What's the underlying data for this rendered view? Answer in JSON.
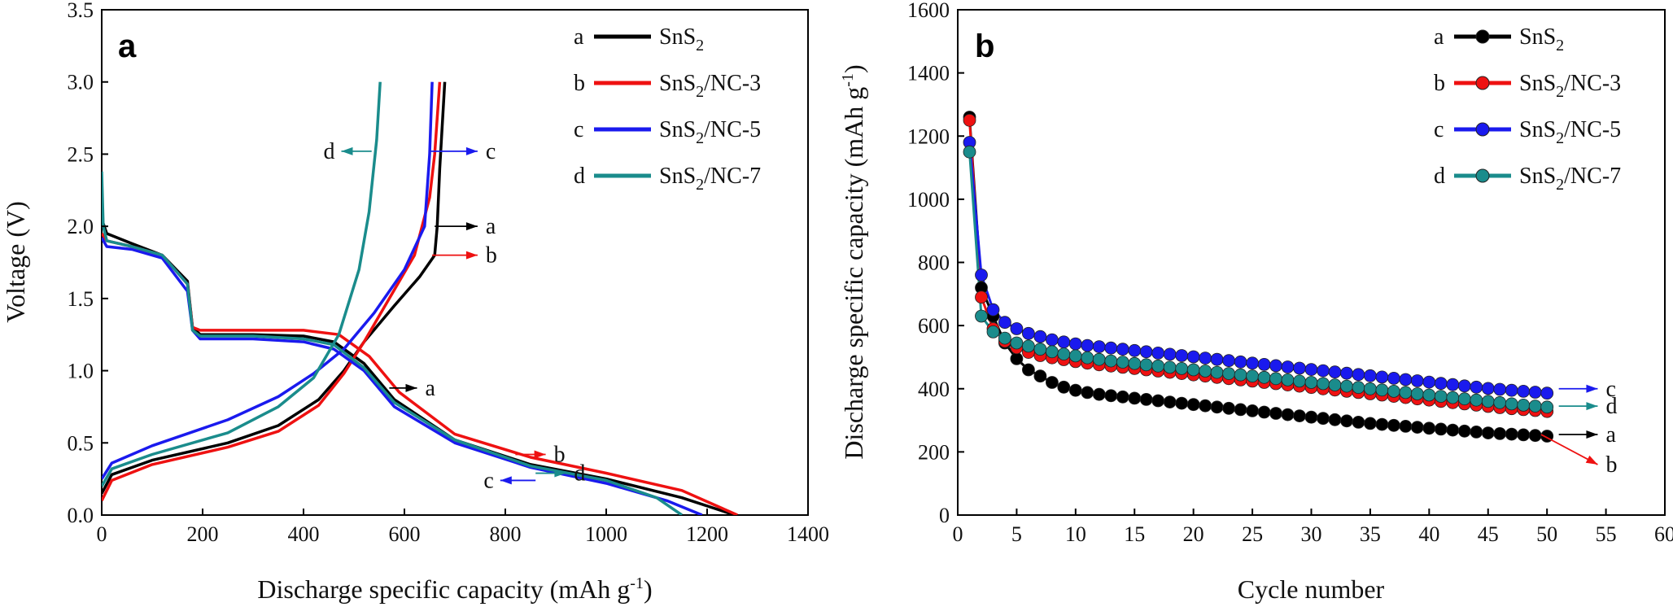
{
  "chart_data": [
    {
      "type": "line",
      "panel_label": "a",
      "xlabel": "Discharge specific capacity (mAh g",
      "xlabel_sup": "-1",
      "xlabel_end": ")",
      "ylabel": "Voltage (V)",
      "xlim": [
        0,
        1400
      ],
      "ylim": [
        0,
        3.5
      ],
      "xticks": [
        "0",
        "200",
        "400",
        "600",
        "800",
        "1000",
        "1200",
        "1400"
      ],
      "yticks": [
        "0.0",
        "0.5",
        "1.0",
        "1.5",
        "2.0",
        "2.5",
        "3.0",
        "3.5"
      ],
      "legend": [
        {
          "key": "a",
          "base": "SnS",
          "sub": "2",
          "rest": "",
          "color": "#000000"
        },
        {
          "key": "b",
          "base": "SnS",
          "sub": "2",
          "rest": "/NC-3",
          "color": "#ee1111"
        },
        {
          "key": "c",
          "base": "SnS",
          "sub": "2",
          "rest": "/NC-5",
          "color": "#1a1aee"
        },
        {
          "key": "d",
          "base": "SnS",
          "sub": "2",
          "rest": "/NC-7",
          "color": "#1a8c8c"
        }
      ],
      "series": [
        {
          "name": "SnS2",
          "color": "#000000",
          "discharge": [
            [
              0,
              2.05
            ],
            [
              10,
              1.95
            ],
            [
              60,
              1.88
            ],
            [
              120,
              1.8
            ],
            [
              170,
              1.62
            ],
            [
              180,
              1.3
            ],
            [
              195,
              1.25
            ],
            [
              300,
              1.25
            ],
            [
              400,
              1.24
            ],
            [
              460,
              1.2
            ],
            [
              520,
              1.05
            ],
            [
              580,
              0.8
            ],
            [
              700,
              0.52
            ],
            [
              850,
              0.35
            ],
            [
              1000,
              0.25
            ],
            [
              1150,
              0.12
            ],
            [
              1255,
              0.0
            ]
          ],
          "charge": [
            [
              0,
              0.15
            ],
            [
              20,
              0.28
            ],
            [
              100,
              0.38
            ],
            [
              250,
              0.5
            ],
            [
              350,
              0.62
            ],
            [
              430,
              0.8
            ],
            [
              480,
              1.0
            ],
            [
              520,
              1.2
            ],
            [
              580,
              1.45
            ],
            [
              630,
              1.65
            ],
            [
              660,
              1.8
            ],
            [
              665,
              2.0
            ],
            [
              670,
              2.4
            ],
            [
              680,
              3.0
            ]
          ]
        },
        {
          "name": "SnS2/NC-3",
          "color": "#ee1111",
          "discharge": [
            [
              0,
              1.95
            ],
            [
              10,
              1.9
            ],
            [
              60,
              1.86
            ],
            [
              120,
              1.8
            ],
            [
              170,
              1.6
            ],
            [
              180,
              1.3
            ],
            [
              195,
              1.28
            ],
            [
              300,
              1.28
            ],
            [
              400,
              1.28
            ],
            [
              470,
              1.25
            ],
            [
              530,
              1.1
            ],
            [
              590,
              0.85
            ],
            [
              700,
              0.56
            ],
            [
              850,
              0.4
            ],
            [
              1000,
              0.29
            ],
            [
              1150,
              0.17
            ],
            [
              1260,
              0.0
            ]
          ],
          "charge": [
            [
              0,
              0.1
            ],
            [
              20,
              0.24
            ],
            [
              100,
              0.35
            ],
            [
              250,
              0.47
            ],
            [
              350,
              0.58
            ],
            [
              430,
              0.76
            ],
            [
              480,
              0.98
            ],
            [
              520,
              1.2
            ],
            [
              570,
              1.5
            ],
            [
              620,
              1.8
            ],
            [
              650,
              2.2
            ],
            [
              660,
              2.5
            ],
            [
              670,
              3.0
            ]
          ]
        },
        {
          "name": "SnS2/NC-5",
          "color": "#1a1aee",
          "discharge": [
            [
              0,
              1.92
            ],
            [
              10,
              1.86
            ],
            [
              60,
              1.84
            ],
            [
              120,
              1.78
            ],
            [
              170,
              1.55
            ],
            [
              180,
              1.28
            ],
            [
              195,
              1.22
            ],
            [
              300,
              1.22
            ],
            [
              400,
              1.2
            ],
            [
              460,
              1.15
            ],
            [
              520,
              1.0
            ],
            [
              580,
              0.75
            ],
            [
              700,
              0.5
            ],
            [
              850,
              0.33
            ],
            [
              1000,
              0.22
            ],
            [
              1120,
              0.1
            ],
            [
              1190,
              0.0
            ]
          ],
          "charge": [
            [
              0,
              0.25
            ],
            [
              20,
              0.36
            ],
            [
              100,
              0.48
            ],
            [
              250,
              0.66
            ],
            [
              350,
              0.82
            ],
            [
              420,
              0.98
            ],
            [
              480,
              1.15
            ],
            [
              540,
              1.4
            ],
            [
              600,
              1.7
            ],
            [
              640,
              2.0
            ],
            [
              650,
              2.5
            ],
            [
              655,
              3.0
            ]
          ]
        },
        {
          "name": "SnS2/NC-7",
          "color": "#1a8c8c",
          "discharge": [
            [
              0,
              2.38
            ],
            [
              3,
              2.0
            ],
            [
              10,
              1.9
            ],
            [
              60,
              1.86
            ],
            [
              120,
              1.8
            ],
            [
              170,
              1.6
            ],
            [
              180,
              1.28
            ],
            [
              195,
              1.24
            ],
            [
              300,
              1.24
            ],
            [
              400,
              1.22
            ],
            [
              460,
              1.18
            ],
            [
              520,
              1.02
            ],
            [
              580,
              0.78
            ],
            [
              700,
              0.52
            ],
            [
              850,
              0.34
            ],
            [
              1000,
              0.24
            ],
            [
              1100,
              0.12
            ],
            [
              1150,
              0.0
            ]
          ],
          "charge": [
            [
              0,
              0.2
            ],
            [
              20,
              0.32
            ],
            [
              100,
              0.42
            ],
            [
              250,
              0.57
            ],
            [
              350,
              0.75
            ],
            [
              420,
              0.95
            ],
            [
              470,
              1.25
            ],
            [
              510,
              1.7
            ],
            [
              530,
              2.1
            ],
            [
              545,
              2.6
            ],
            [
              552,
              3.0
            ]
          ]
        }
      ],
      "annotations": [
        {
          "text": "a",
          "dir": "right",
          "color": "#000000",
          "tip": [
            625,
            0.88
          ],
          "tail": [
            570,
            0.88
          ]
        },
        {
          "text": "b",
          "dir": "right",
          "color": "#ee1111",
          "tip": [
            880,
            0.42
          ],
          "tail": [
            820,
            0.42
          ]
        },
        {
          "text": "c",
          "dir": "left",
          "color": "#1a1aee",
          "tip": [
            790,
            0.24
          ],
          "tail": [
            860,
            0.24
          ]
        },
        {
          "text": "d",
          "dir": "right",
          "color": "#1a8c8c",
          "tip": [
            920,
            0.29
          ],
          "tail": [
            860,
            0.29
          ]
        },
        {
          "text": "d",
          "dir": "left",
          "color": "#1a8c8c",
          "tip": [
            475,
            2.52
          ],
          "tail": [
            535,
            2.52
          ]
        },
        {
          "text": "c",
          "dir": "right",
          "color": "#1a1aee",
          "tip": [
            745,
            2.52
          ],
          "tail": [
            650,
            2.52
          ]
        },
        {
          "text": "a",
          "dir": "right",
          "color": "#000000",
          "tip": [
            745,
            2.0
          ],
          "tail": [
            660,
            2.0
          ]
        },
        {
          "text": "b",
          "dir": "right",
          "color": "#ee1111",
          "tip": [
            745,
            1.8
          ],
          "tail": [
            655,
            1.8
          ]
        }
      ]
    },
    {
      "type": "line",
      "panel_label": "b",
      "xlabel": "Cycle number",
      "ylabel": "Discharge specific capacity (mAh g",
      "ylabel_sup": "-1",
      "ylabel_end": ")",
      "xlim": [
        0,
        60
      ],
      "ylim": [
        0,
        1600
      ],
      "xticks": [
        "0",
        "5",
        "10",
        "15",
        "20",
        "25",
        "30",
        "35",
        "40",
        "45",
        "50",
        "55",
        "60"
      ],
      "yticks": [
        "0",
        "200",
        "400",
        "600",
        "800",
        "1000",
        "1200",
        "1400",
        "1600"
      ],
      "legend": [
        {
          "key": "a",
          "base": "SnS",
          "sub": "2",
          "rest": "",
          "color": "#000000"
        },
        {
          "key": "b",
          "base": "SnS",
          "sub": "2",
          "rest": "/NC-3",
          "color": "#ee1111"
        },
        {
          "key": "c",
          "base": "SnS",
          "sub": "2",
          "rest": "/NC-5",
          "color": "#1a1aee"
        },
        {
          "key": "d",
          "base": "SnS",
          "sub": "2",
          "rest": "/NC-7",
          "color": "#1a8c8c"
        }
      ],
      "series": [
        {
          "name": "SnS2",
          "color": "#000000",
          "values": [
            1260,
            720,
            630,
            545,
            495,
            460,
            440,
            420,
            405,
            395,
            388,
            382,
            378,
            374,
            370,
            366,
            362,
            358,
            354,
            350,
            346,
            342,
            338,
            334,
            330,
            326,
            322,
            318,
            314,
            310,
            306,
            302,
            298,
            294,
            290,
            287,
            284,
            281,
            278,
            275,
            272,
            269,
            266,
            263,
            260,
            258,
            256,
            254,
            252,
            250
          ]
        },
        {
          "name": "SnS2/NC-3",
          "color": "#ee1111",
          "values": [
            1250,
            690,
            590,
            550,
            530,
            515,
            505,
            498,
            492,
            486,
            481,
            476,
            472,
            468,
            464,
            460,
            456,
            452,
            448,
            444,
            440,
            436,
            432,
            428,
            424,
            420,
            416,
            412,
            408,
            404,
            400,
            396,
            392,
            388,
            384,
            380,
            376,
            372,
            368,
            364,
            360,
            356,
            352,
            348,
            344,
            340,
            337,
            334,
            331,
            328
          ]
        },
        {
          "name": "SnS2/NC-5",
          "color": "#1a1aee",
          "values": [
            1180,
            760,
            650,
            610,
            590,
            575,
            565,
            555,
            548,
            542,
            537,
            533,
            529,
            525,
            521,
            517,
            513,
            509,
            505,
            501,
            497,
            493,
            489,
            485,
            481,
            477,
            473,
            469,
            465,
            461,
            457,
            453,
            449,
            445,
            441,
            437,
            433,
            429,
            425,
            421,
            417,
            413,
            409,
            405,
            401,
            398,
            395,
            392,
            389,
            386
          ]
        },
        {
          "name": "SnS2/NC-7",
          "color": "#1a8c8c",
          "values": [
            1150,
            630,
            580,
            560,
            545,
            535,
            525,
            517,
            510,
            504,
            498,
            493,
            488,
            484,
            480,
            476,
            472,
            468,
            464,
            460,
            456,
            452,
            448,
            444,
            440,
            436,
            432,
            428,
            424,
            420,
            416,
            412,
            408,
            404,
            400,
            396,
            392,
            388,
            384,
            380,
            376,
            372,
            368,
            364,
            360,
            356,
            352,
            348,
            345,
            342
          ]
        }
      ],
      "annotations": [
        {
          "text": "c",
          "color": "#1a1aee",
          "tip": [
            54.3,
            400
          ],
          "tail": [
            51,
            400
          ]
        },
        {
          "text": "d",
          "color": "#1a8c8c",
          "tip": [
            54.3,
            345
          ],
          "tail": [
            51,
            345
          ]
        },
        {
          "text": "a",
          "color": "#000000",
          "tip": [
            54.3,
            255
          ],
          "tail": [
            51,
            255
          ]
        },
        {
          "text": "b",
          "color": "#ee1111",
          "tip": [
            54.3,
            160
          ],
          "tail": [
            49.5,
            255
          ]
        }
      ]
    }
  ]
}
